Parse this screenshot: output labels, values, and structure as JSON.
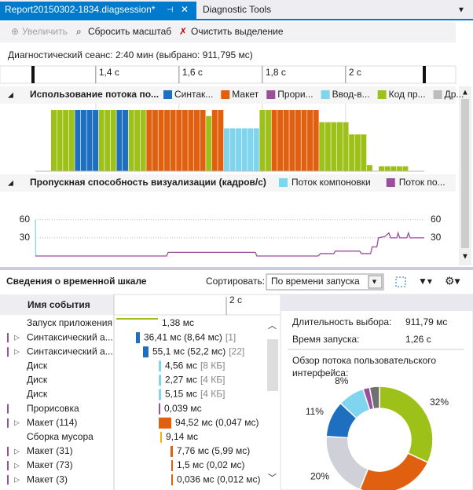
{
  "tabs": [
    "Report20150302-1834.diagsession*",
    "Diagnostic Tools"
  ],
  "toolbar": [
    "Увеличить",
    "Сбросить масштаб",
    "Очистить выделение"
  ],
  "session": "Диагностический сеанс: 2:40 мин (выбрано: 911,795 мс)",
  "ruler": {
    "xlim": [
      1.255,
      2.189
    ],
    "xticks": [
      {
        "value": 1.4,
        "label": "1,4 с"
      },
      {
        "value": 1.6,
        "label": "1,6 с"
      },
      {
        "value": 1.8,
        "label": "1,8 с"
      },
      {
        "value": 2,
        "label": "2 с"
      }
    ]
  },
  "utilization": {
    "title": "Использование потока по...",
    "ylim": [
      0,
      100
    ],
    "series": [
      {
        "name": "Синтак...",
        "color": "#1e6fc0"
      },
      {
        "name": "Макет",
        "color": "#e0600f"
      },
      {
        "name": "Прори...",
        "color": "#9b4f9b"
      },
      {
        "name": "Ввод-в...",
        "color": "#7fd4ee"
      },
      {
        "name": "Код пр...",
        "color": "#9ec11a"
      },
      {
        "name": "Др...",
        "color": "#bdbdbd"
      }
    ],
    "bars": [
      [
        4,
        100
      ],
      [
        4,
        100
      ],
      [
        4,
        100
      ],
      [
        4,
        100
      ],
      [
        0,
        100
      ],
      [
        0,
        100
      ],
      [
        0,
        100
      ],
      [
        0,
        100
      ],
      [
        4,
        100
      ],
      [
        4,
        100
      ],
      [
        4,
        100
      ],
      [
        0,
        100
      ],
      [
        0,
        100
      ],
      [
        4,
        100
      ],
      [
        4,
        100
      ],
      [
        4,
        100
      ],
      [
        1,
        100
      ],
      [
        1,
        100
      ],
      [
        1,
        100
      ],
      [
        1,
        100
      ],
      [
        1,
        100
      ],
      [
        1,
        100
      ],
      [
        1,
        100
      ],
      [
        1,
        100
      ],
      [
        1,
        100
      ],
      [
        1,
        100
      ],
      [
        4,
        90
      ],
      [
        1,
        100
      ],
      [
        1,
        100
      ],
      [
        3,
        70
      ],
      [
        3,
        70
      ],
      [
        3,
        70
      ],
      [
        3,
        70
      ],
      [
        3,
        70
      ],
      [
        3,
        70
      ],
      [
        4,
        100
      ],
      [
        4,
        100
      ],
      [
        1,
        100
      ],
      [
        1,
        100
      ],
      [
        1,
        100
      ],
      [
        1,
        100
      ],
      [
        1,
        100
      ],
      [
        1,
        100
      ],
      [
        1,
        100
      ],
      [
        1,
        100
      ],
      [
        4,
        80
      ],
      [
        4,
        80
      ],
      [
        4,
        80
      ],
      [
        4,
        80
      ],
      [
        4,
        80
      ],
      [
        4,
        60
      ],
      [
        4,
        60
      ],
      [
        4,
        60
      ],
      [
        4,
        10
      ],
      [
        4,
        0
      ],
      [
        4,
        8
      ],
      [
        4,
        8
      ],
      [
        4,
        8
      ],
      [
        4,
        8
      ],
      [
        4,
        8
      ]
    ]
  },
  "throughput": {
    "title": "Пропускная способность визуализации (кадров/с)",
    "ylim": [
      0,
      105
    ],
    "yticks": [
      30,
      60
    ],
    "series": [
      {
        "name": "Поток компоновки",
        "color": "#7fd4ee",
        "x": [
          1.255,
          1.256
        ],
        "values": [
          60,
          0
        ]
      },
      {
        "name": "Поток по...",
        "color": "#9b4f9b",
        "x": [
          1.255,
          1.57,
          1.574,
          1.783,
          1.787,
          1.934,
          1.94,
          1.972,
          1.975,
          2.034,
          2.038,
          2.06,
          2.064,
          2.075,
          2.079,
          2.094,
          2.104,
          2.108,
          2.123,
          2.126,
          2.13,
          2.147,
          2.151,
          2.155,
          2.189
        ],
        "values": [
          0,
          0,
          6,
          6,
          0,
          0,
          4,
          4,
          8,
          8,
          4,
          4,
          15,
          15,
          30,
          32,
          38,
          30,
          30,
          38,
          30,
          30,
          38,
          30,
          30
        ]
      }
    ]
  },
  "details": {
    "title": "Сведения о временной шкале",
    "sort_label": "Сортировать:",
    "sort_value": "По времени запуска",
    "column": "Имя события",
    "ruler_tick": "2 с",
    "rows": [
      {
        "name": "Запуск приложения",
        "expandable": false,
        "color": "#9ec11a",
        "value": "1,38 мс"
      },
      {
        "name": "Синтаксический а...",
        "expandable": true,
        "color": "#1e6fc0",
        "value": "36,41 мс (8,64 мс)",
        "extra": "[1]"
      },
      {
        "name": "Синтаксический а...",
        "expandable": true,
        "color": "#1e6fc0",
        "value": "55,1 мс (52,2 мс)",
        "extra": "[22]"
      },
      {
        "name": "Диск",
        "expandable": false,
        "color": "#7fd4ee",
        "value": "4,56 мс",
        "extra": "[8 КБ]"
      },
      {
        "name": "Диск",
        "expandable": false,
        "color": "#7fd4ee",
        "value": "2,27 мс",
        "extra": "[4 КБ]"
      },
      {
        "name": "Диск",
        "expandable": false,
        "color": "#7fd4ee",
        "value": "5,15 мс",
        "extra": "[4 КБ]"
      },
      {
        "name": "Прорисовка",
        "expandable": false,
        "color": "#9b4f9b",
        "value": "0,039 мс"
      },
      {
        "name": "Макет (114)",
        "expandable": true,
        "color": "#e0600f",
        "value": "94,52 мс (0,047 мс)"
      },
      {
        "name": "Сборка мусора",
        "expandable": false,
        "color": "#f0b400",
        "value": "9,14 мс"
      },
      {
        "name": "Макет (31)",
        "expandable": true,
        "color": "#e0600f",
        "value": "7,76 мс (5,99 мс)"
      },
      {
        "name": "Макет (73)",
        "expandable": true,
        "color": "#e0600f",
        "value": "1,5 мс (0,02 мс)"
      },
      {
        "name": "Макет (3)",
        "expandable": true,
        "color": "#e0600f",
        "value": "0,036 мс (0,012 мс)"
      }
    ]
  },
  "summary": {
    "duration_label": "Длительность выбора:",
    "duration": "911,79 мс",
    "start_label": "Время запуска:",
    "start": "1,26 с",
    "overview": [
      "Обзор потока пользовательского",
      "интерфейса:"
    ],
    "donut": {
      "values": [
        32,
        24,
        20,
        11,
        8,
        2,
        3
      ],
      "value_labels": [
        "32%",
        null,
        "20%",
        "11%",
        "8%",
        null,
        null
      ],
      "colors": [
        "#9ec11a",
        "#e0600f",
        "#cfd0d8",
        "#1e6fc0",
        "#7fd4ee",
        "#9b4f9b",
        "#707070"
      ]
    }
  }
}
